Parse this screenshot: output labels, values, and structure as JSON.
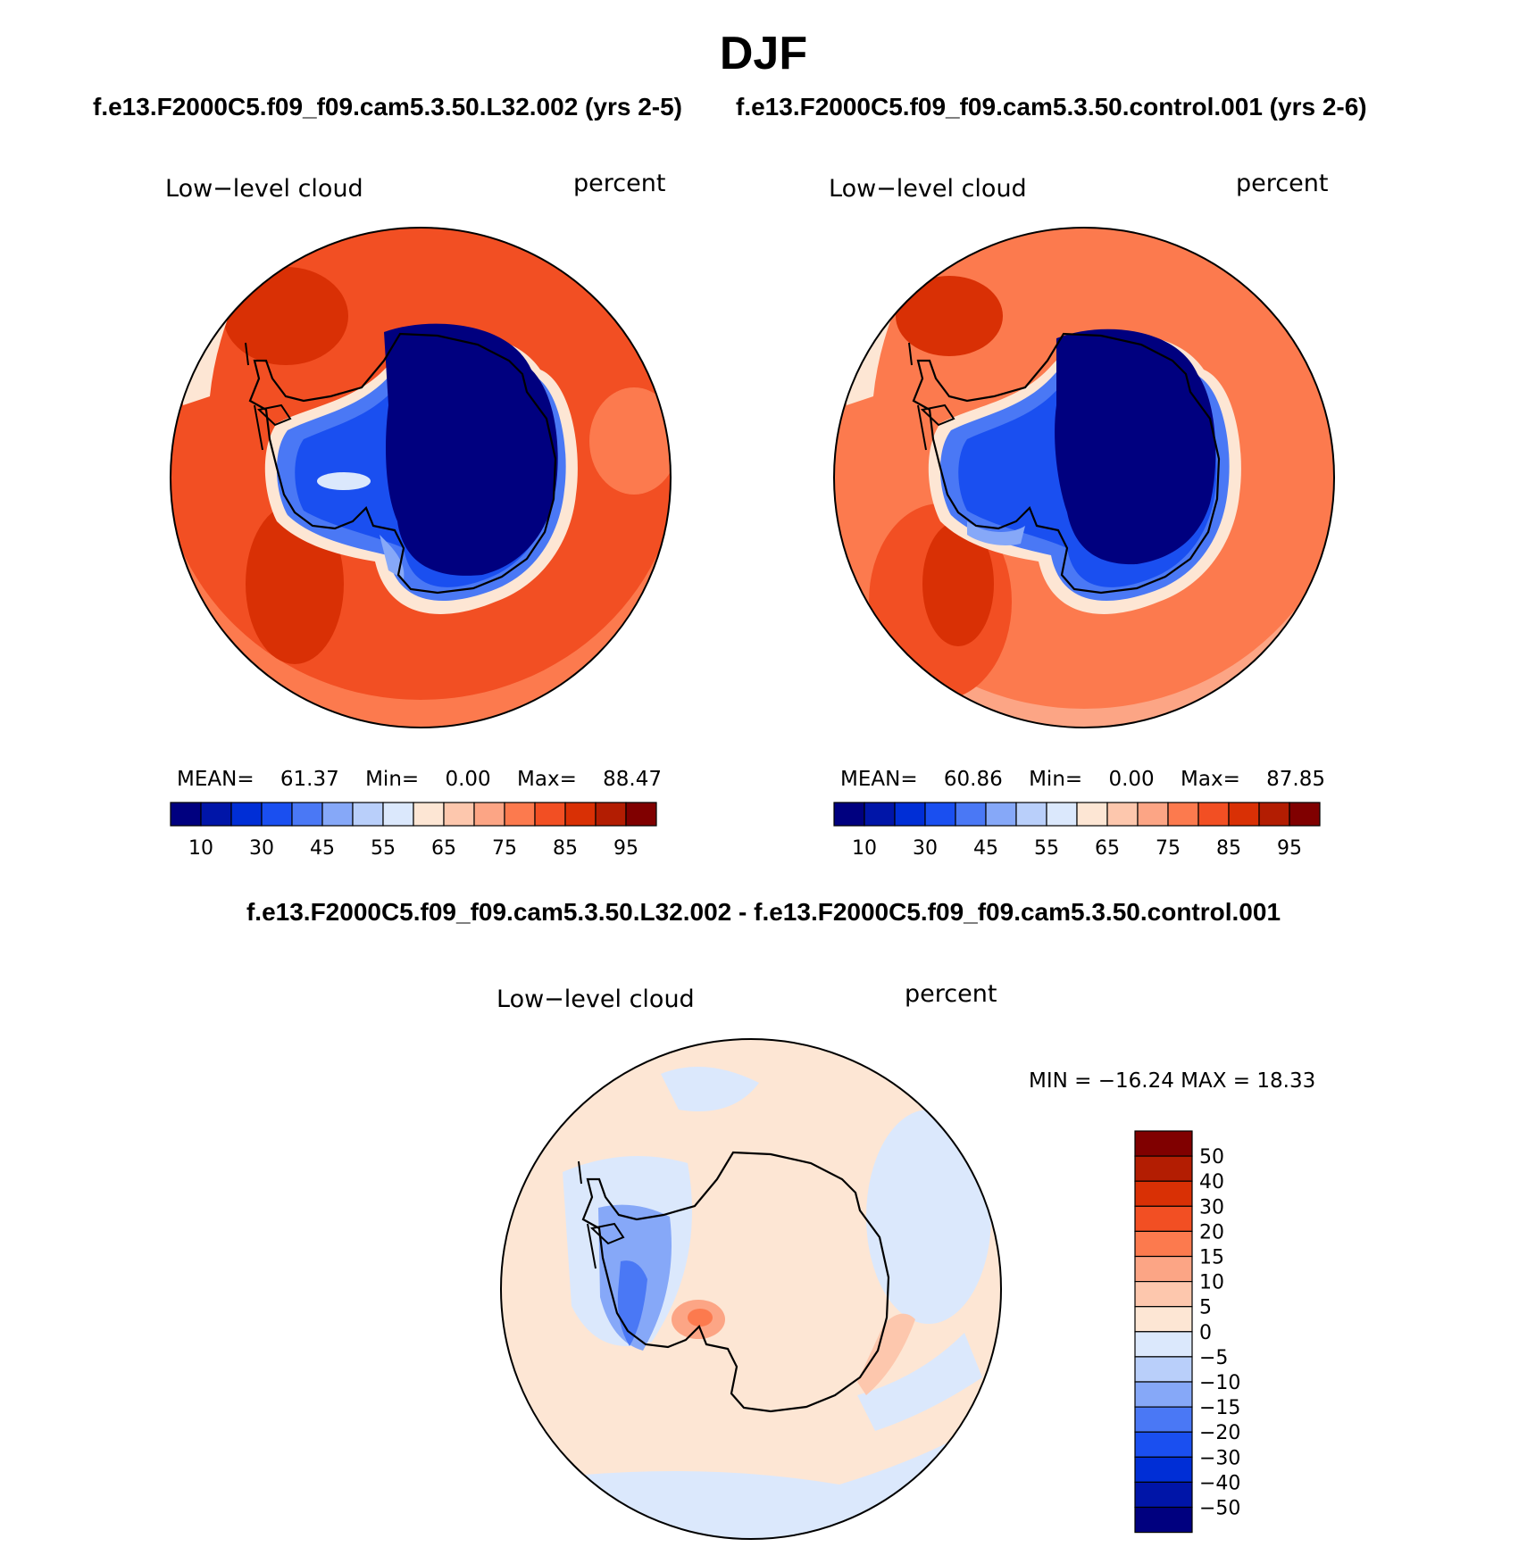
{
  "title": "DJF",
  "left_panel": {
    "case_title": "f.e13.F2000C5.f09_f09.cam5.3.50.L32.002 (yrs 2-5)",
    "variable": "Low−level cloud",
    "units": "percent",
    "stats": {
      "mean_label": "MEAN=",
      "mean": "61.37",
      "min_label": "Min=",
      "min": "0.00",
      "max_label": "Max=",
      "max": "88.47"
    }
  },
  "right_panel": {
    "case_title": "f.e13.F2000C5.f09_f09.cam5.3.50.control.001 (yrs 2-6)",
    "variable": "Low−level cloud",
    "units": "percent",
    "stats": {
      "mean_label": "MEAN=",
      "mean": "60.86",
      "min_label": "Min=",
      "min": "0.00",
      "max_label": "Max=",
      "max": "87.85"
    }
  },
  "diff_panel": {
    "title": "f.e13.F2000C5.f09_f09.cam5.3.50.L32.002 - f.e13.F2000C5.f09_f09.cam5.3.50.control.001",
    "variable": "Low−level cloud",
    "units": "percent",
    "minmax": "MIN = −16.24 MAX =   18.33"
  },
  "abs_colorbar": {
    "colors": [
      "#00007f",
      "#0015a8",
      "#002ed6",
      "#1a4ff0",
      "#4a78f5",
      "#86a8f8",
      "#b9cffa",
      "#dbe8fc",
      "#fde6d4",
      "#fdc7ad",
      "#fca585",
      "#fc7a4e",
      "#f24f23",
      "#d93005",
      "#b31d02",
      "#800000"
    ],
    "labels": [
      "10",
      "30",
      "45",
      "55",
      "65",
      "75",
      "85",
      "95"
    ]
  },
  "diff_colorbar": {
    "colors": [
      "#800000",
      "#b31d02",
      "#d93005",
      "#f24f23",
      "#fc7a4e",
      "#fca585",
      "#fdc7ad",
      "#fde6d4",
      "#dbe8fc",
      "#b9cffa",
      "#86a8f8",
      "#4a78f5",
      "#1a4ff0",
      "#002ed6",
      "#0015a8",
      "#00007f"
    ],
    "labels": [
      "50",
      "40",
      "30",
      "20",
      "15",
      "10",
      "5",
      "0",
      "−5",
      "−10",
      "−15",
      "−20",
      "−30",
      "−40",
      "−50"
    ]
  },
  "chart_data": [
    {
      "type": "heatmap",
      "title": "f.e13.F2000C5.f09_f09.cam5.3.50.L32.002 (yrs 2-5)",
      "variable": "Low−level cloud",
      "units": "percent",
      "projection": "south polar stereographic",
      "mean": 61.37,
      "min": 0.0,
      "max": 88.47,
      "levels": [
        5,
        10,
        20,
        30,
        40,
        45,
        50,
        55,
        60,
        65,
        70,
        75,
        80,
        85,
        90,
        95
      ]
    },
    {
      "type": "heatmap",
      "title": "f.e13.F2000C5.f09_f09.cam5.3.50.control.001 (yrs 2-6)",
      "variable": "Low−level cloud",
      "units": "percent",
      "projection": "south polar stereographic",
      "mean": 60.86,
      "min": 0.0,
      "max": 87.85,
      "levels": [
        5,
        10,
        20,
        30,
        40,
        45,
        50,
        55,
        60,
        65,
        70,
        75,
        80,
        85,
        90,
        95
      ]
    },
    {
      "type": "heatmap",
      "title": "f.e13.F2000C5.f09_f09.cam5.3.50.L32.002 - f.e13.F2000C5.f09_f09.cam5.3.50.control.001",
      "variable": "Low−level cloud",
      "units": "percent",
      "projection": "south polar stereographic",
      "min": -16.24,
      "max": 18.33,
      "levels": [
        -50,
        -40,
        -30,
        -20,
        -15,
        -10,
        -5,
        0,
        5,
        10,
        15,
        20,
        30,
        40,
        50
      ]
    }
  ]
}
